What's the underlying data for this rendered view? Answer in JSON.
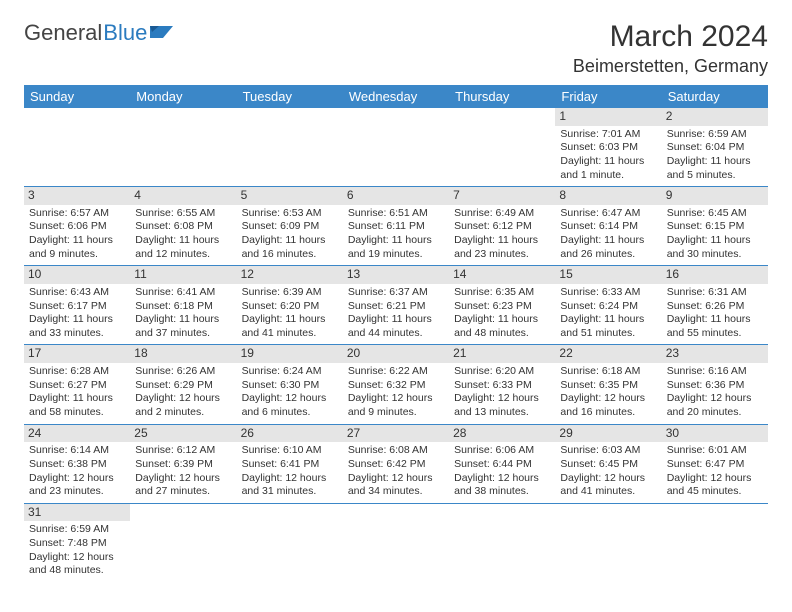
{
  "logo": {
    "part1": "General",
    "part2": "Blue"
  },
  "title": "March 2024",
  "location": "Beimerstetten, Germany",
  "columns": [
    "Sunday",
    "Monday",
    "Tuesday",
    "Wednesday",
    "Thursday",
    "Friday",
    "Saturday"
  ],
  "colors": {
    "header_bg": "#3b87c8",
    "header_text": "#ffffff",
    "daynum_bg": "#e5e5e5",
    "border": "#3b87c8",
    "logo_blue": "#2b7bbf",
    "text": "#333333",
    "background": "#ffffff"
  },
  "typography": {
    "title_fontsize": 30,
    "location_fontsize": 18,
    "header_fontsize": 13,
    "cell_fontsize": 10.5,
    "logo_fontsize": 22
  },
  "weeks": [
    [
      {
        "n": "",
        "sr": "",
        "ss": "",
        "d1": "",
        "d2": ""
      },
      {
        "n": "",
        "sr": "",
        "ss": "",
        "d1": "",
        "d2": ""
      },
      {
        "n": "",
        "sr": "",
        "ss": "",
        "d1": "",
        "d2": ""
      },
      {
        "n": "",
        "sr": "",
        "ss": "",
        "d1": "",
        "d2": ""
      },
      {
        "n": "",
        "sr": "",
        "ss": "",
        "d1": "",
        "d2": ""
      },
      {
        "n": "1",
        "sr": "Sunrise: 7:01 AM",
        "ss": "Sunset: 6:03 PM",
        "d1": "Daylight: 11 hours",
        "d2": "and 1 minute."
      },
      {
        "n": "2",
        "sr": "Sunrise: 6:59 AM",
        "ss": "Sunset: 6:04 PM",
        "d1": "Daylight: 11 hours",
        "d2": "and 5 minutes."
      }
    ],
    [
      {
        "n": "3",
        "sr": "Sunrise: 6:57 AM",
        "ss": "Sunset: 6:06 PM",
        "d1": "Daylight: 11 hours",
        "d2": "and 9 minutes."
      },
      {
        "n": "4",
        "sr": "Sunrise: 6:55 AM",
        "ss": "Sunset: 6:08 PM",
        "d1": "Daylight: 11 hours",
        "d2": "and 12 minutes."
      },
      {
        "n": "5",
        "sr": "Sunrise: 6:53 AM",
        "ss": "Sunset: 6:09 PM",
        "d1": "Daylight: 11 hours",
        "d2": "and 16 minutes."
      },
      {
        "n": "6",
        "sr": "Sunrise: 6:51 AM",
        "ss": "Sunset: 6:11 PM",
        "d1": "Daylight: 11 hours",
        "d2": "and 19 minutes."
      },
      {
        "n": "7",
        "sr": "Sunrise: 6:49 AM",
        "ss": "Sunset: 6:12 PM",
        "d1": "Daylight: 11 hours",
        "d2": "and 23 minutes."
      },
      {
        "n": "8",
        "sr": "Sunrise: 6:47 AM",
        "ss": "Sunset: 6:14 PM",
        "d1": "Daylight: 11 hours",
        "d2": "and 26 minutes."
      },
      {
        "n": "9",
        "sr": "Sunrise: 6:45 AM",
        "ss": "Sunset: 6:15 PM",
        "d1": "Daylight: 11 hours",
        "d2": "and 30 minutes."
      }
    ],
    [
      {
        "n": "10",
        "sr": "Sunrise: 6:43 AM",
        "ss": "Sunset: 6:17 PM",
        "d1": "Daylight: 11 hours",
        "d2": "and 33 minutes."
      },
      {
        "n": "11",
        "sr": "Sunrise: 6:41 AM",
        "ss": "Sunset: 6:18 PM",
        "d1": "Daylight: 11 hours",
        "d2": "and 37 minutes."
      },
      {
        "n": "12",
        "sr": "Sunrise: 6:39 AM",
        "ss": "Sunset: 6:20 PM",
        "d1": "Daylight: 11 hours",
        "d2": "and 41 minutes."
      },
      {
        "n": "13",
        "sr": "Sunrise: 6:37 AM",
        "ss": "Sunset: 6:21 PM",
        "d1": "Daylight: 11 hours",
        "d2": "and 44 minutes."
      },
      {
        "n": "14",
        "sr": "Sunrise: 6:35 AM",
        "ss": "Sunset: 6:23 PM",
        "d1": "Daylight: 11 hours",
        "d2": "and 48 minutes."
      },
      {
        "n": "15",
        "sr": "Sunrise: 6:33 AM",
        "ss": "Sunset: 6:24 PM",
        "d1": "Daylight: 11 hours",
        "d2": "and 51 minutes."
      },
      {
        "n": "16",
        "sr": "Sunrise: 6:31 AM",
        "ss": "Sunset: 6:26 PM",
        "d1": "Daylight: 11 hours",
        "d2": "and 55 minutes."
      }
    ],
    [
      {
        "n": "17",
        "sr": "Sunrise: 6:28 AM",
        "ss": "Sunset: 6:27 PM",
        "d1": "Daylight: 11 hours",
        "d2": "and 58 minutes."
      },
      {
        "n": "18",
        "sr": "Sunrise: 6:26 AM",
        "ss": "Sunset: 6:29 PM",
        "d1": "Daylight: 12 hours",
        "d2": "and 2 minutes."
      },
      {
        "n": "19",
        "sr": "Sunrise: 6:24 AM",
        "ss": "Sunset: 6:30 PM",
        "d1": "Daylight: 12 hours",
        "d2": "and 6 minutes."
      },
      {
        "n": "20",
        "sr": "Sunrise: 6:22 AM",
        "ss": "Sunset: 6:32 PM",
        "d1": "Daylight: 12 hours",
        "d2": "and 9 minutes."
      },
      {
        "n": "21",
        "sr": "Sunrise: 6:20 AM",
        "ss": "Sunset: 6:33 PM",
        "d1": "Daylight: 12 hours",
        "d2": "and 13 minutes."
      },
      {
        "n": "22",
        "sr": "Sunrise: 6:18 AM",
        "ss": "Sunset: 6:35 PM",
        "d1": "Daylight: 12 hours",
        "d2": "and 16 minutes."
      },
      {
        "n": "23",
        "sr": "Sunrise: 6:16 AM",
        "ss": "Sunset: 6:36 PM",
        "d1": "Daylight: 12 hours",
        "d2": "and 20 minutes."
      }
    ],
    [
      {
        "n": "24",
        "sr": "Sunrise: 6:14 AM",
        "ss": "Sunset: 6:38 PM",
        "d1": "Daylight: 12 hours",
        "d2": "and 23 minutes."
      },
      {
        "n": "25",
        "sr": "Sunrise: 6:12 AM",
        "ss": "Sunset: 6:39 PM",
        "d1": "Daylight: 12 hours",
        "d2": "and 27 minutes."
      },
      {
        "n": "26",
        "sr": "Sunrise: 6:10 AM",
        "ss": "Sunset: 6:41 PM",
        "d1": "Daylight: 12 hours",
        "d2": "and 31 minutes."
      },
      {
        "n": "27",
        "sr": "Sunrise: 6:08 AM",
        "ss": "Sunset: 6:42 PM",
        "d1": "Daylight: 12 hours",
        "d2": "and 34 minutes."
      },
      {
        "n": "28",
        "sr": "Sunrise: 6:06 AM",
        "ss": "Sunset: 6:44 PM",
        "d1": "Daylight: 12 hours",
        "d2": "and 38 minutes."
      },
      {
        "n": "29",
        "sr": "Sunrise: 6:03 AM",
        "ss": "Sunset: 6:45 PM",
        "d1": "Daylight: 12 hours",
        "d2": "and 41 minutes."
      },
      {
        "n": "30",
        "sr": "Sunrise: 6:01 AM",
        "ss": "Sunset: 6:47 PM",
        "d1": "Daylight: 12 hours",
        "d2": "and 45 minutes."
      }
    ],
    [
      {
        "n": "31",
        "sr": "Sunrise: 6:59 AM",
        "ss": "Sunset: 7:48 PM",
        "d1": "Daylight: 12 hours",
        "d2": "and 48 minutes."
      },
      {
        "n": "",
        "sr": "",
        "ss": "",
        "d1": "",
        "d2": ""
      },
      {
        "n": "",
        "sr": "",
        "ss": "",
        "d1": "",
        "d2": ""
      },
      {
        "n": "",
        "sr": "",
        "ss": "",
        "d1": "",
        "d2": ""
      },
      {
        "n": "",
        "sr": "",
        "ss": "",
        "d1": "",
        "d2": ""
      },
      {
        "n": "",
        "sr": "",
        "ss": "",
        "d1": "",
        "d2": ""
      },
      {
        "n": "",
        "sr": "",
        "ss": "",
        "d1": "",
        "d2": ""
      }
    ]
  ]
}
